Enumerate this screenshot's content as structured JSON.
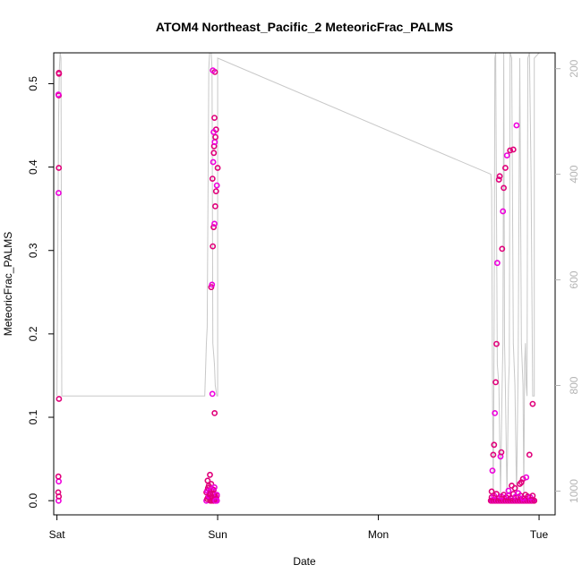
{
  "chart_data": {
    "type": "scatter",
    "title": "ATOM4 Northeast_Pacific_2 MeteoricFrac_PALMS",
    "xlabel": "Date",
    "ylabel": "MeteoricFrac_PALMS",
    "xlim": [
      -0.02,
      3.1
    ],
    "ylim": [
      -0.017,
      0.537
    ],
    "x_ticks": [
      {
        "value": 0,
        "label": "Sat"
      },
      {
        "value": 1,
        "label": "Sun"
      },
      {
        "value": 2,
        "label": "Mon"
      },
      {
        "value": 3,
        "label": "Tue"
      }
    ],
    "y_ticks": [
      0.0,
      0.1,
      0.2,
      0.3,
      0.4,
      0.5
    ],
    "y_tick_labels": [
      "0.0",
      "0.1",
      "0.2",
      "0.3",
      "0.4",
      "0.5"
    ],
    "y2_label": "",
    "y2_lim": [
      1045,
      170
    ],
    "y2_ticks": [
      200,
      400,
      600,
      800,
      1000
    ],
    "y2_tick_labels": [
      "200",
      "400",
      "600",
      "800",
      "1000"
    ],
    "grid": false,
    "colors": {
      "points_dark": "#e0007a",
      "points_light": "#ee00dd",
      "pressure": "#c8c8c8",
      "axis": "#000000",
      "axis2": "#b4b4b4"
    },
    "series": [
      {
        "kind": "points",
        "x": [
          0.01,
          0.012,
          0.008,
          0.011,
          0.009,
          0.013,
          0.01,
          0.012,
          0.011,
          0.009,
          0.013,
          0.012,
          0.93,
          0.935,
          0.94,
          0.945,
          0.95,
          0.955,
          0.96,
          0.965,
          0.97,
          0.975,
          0.98,
          0.985,
          0.99,
          0.995,
          0.93,
          0.935,
          0.94,
          0.945,
          0.95,
          0.955,
          0.96,
          0.965,
          0.97,
          0.975,
          0.98,
          0.985,
          0.99,
          0.995,
          0.938,
          0.952,
          0.967,
          0.981,
          0.96,
          0.965,
          0.97,
          0.975,
          0.98,
          0.985,
          0.99,
          0.995,
          1.0,
          0.968,
          0.972,
          0.976,
          0.978,
          0.982,
          0.986,
          0.99,
          0.975,
          0.98,
          0.983,
          0.97,
          0.972,
          0.975,
          0.98,
          0.985,
          0.99,
          0.995,
          0.963,
          0.978,
          0.987,
          2.7,
          2.705,
          2.71,
          2.715,
          2.72,
          2.725,
          2.73,
          2.735,
          2.74,
          2.745,
          2.75,
          2.755,
          2.76,
          2.765,
          2.77,
          2.775,
          2.78,
          2.785,
          2.79,
          2.795,
          2.8,
          2.805,
          2.81,
          2.815,
          2.82,
          2.825,
          2.83,
          2.835,
          2.84,
          2.845,
          2.85,
          2.855,
          2.86,
          2.865,
          2.87,
          2.875,
          2.88,
          2.885,
          2.89,
          2.895,
          2.9,
          2.905,
          2.91,
          2.915,
          2.92,
          2.925,
          2.93,
          2.935,
          2.94,
          2.945,
          2.95,
          2.955,
          2.96,
          2.965,
          2.97,
          2.705,
          2.72,
          2.735,
          2.75,
          2.765,
          2.78,
          2.795,
          2.81,
          2.825,
          2.84,
          2.855,
          2.87,
          2.885,
          2.9,
          2.915,
          2.93,
          2.945,
          2.96,
          2.705,
          2.71,
          2.715,
          2.72,
          2.725,
          2.73,
          2.735,
          2.74,
          2.75,
          2.755,
          2.76,
          2.765,
          2.77,
          2.775,
          2.78,
          2.79,
          2.8,
          2.82,
          2.84,
          2.86,
          2.88,
          2.9,
          2.92,
          2.94,
          2.96,
          2.81,
          2.83,
          2.85,
          2.87,
          2.89
        ],
        "y": [
          0.0,
          0.005,
          0.01,
          0.023,
          0.029,
          0.122,
          0.369,
          0.399,
          0.486,
          0.487,
          0.512,
          0.513,
          0.0,
          0.002,
          0.004,
          0.006,
          0.008,
          0.0,
          0.003,
          0.005,
          0.001,
          0.007,
          0.002,
          0.004,
          0.0,
          0.006,
          0.01,
          0.012,
          0.015,
          0.018,
          0.011,
          0.008,
          0.02,
          0.014,
          0.009,
          0.013,
          0.016,
          0.005,
          0.003,
          0.007,
          0.024,
          0.031,
          0.128,
          0.105,
          0.256,
          0.259,
          0.305,
          0.328,
          0.332,
          0.353,
          0.371,
          0.378,
          0.399,
          0.386,
          0.406,
          0.417,
          0.425,
          0.43,
          0.436,
          0.445,
          0.442,
          0.459,
          0.514,
          0.516,
          0.0,
          0.0,
          0.001,
          0.0,
          0.002,
          0.0,
          0.0,
          0.001,
          0.0,
          0.0,
          0.0,
          0.0,
          0.0,
          0.0,
          0.0,
          0.0,
          0.0,
          0.0,
          0.0,
          0.0,
          0.0,
          0.0,
          0.0,
          0.0,
          0.0,
          0.0,
          0.0,
          0.0,
          0.0,
          0.0,
          0.0,
          0.0,
          0.0,
          0.0,
          0.0,
          0.0,
          0.0,
          0.0,
          0.0,
          0.0,
          0.0,
          0.0,
          0.0,
          0.0,
          0.0,
          0.0,
          0.0,
          0.0,
          0.0,
          0.0,
          0.0,
          0.0,
          0.0,
          0.0,
          0.0,
          0.0,
          0.0,
          0.0,
          0.0,
          0.0,
          0.0,
          0.0,
          0.0,
          0.0,
          0.004,
          0.006,
          0.008,
          0.003,
          0.005,
          0.007,
          0.004,
          0.006,
          0.003,
          0.008,
          0.005,
          0.004,
          0.006,
          0.003,
          0.007,
          0.005,
          0.004,
          0.006,
          0.011,
          0.036,
          0.055,
          0.067,
          0.105,
          0.142,
          0.188,
          0.285,
          0.385,
          0.389,
          0.053,
          0.058,
          0.302,
          0.347,
          0.375,
          0.399,
          0.414,
          0.42,
          0.421,
          0.45,
          0.02,
          0.026,
          0.028,
          0.055,
          0.116,
          0.012,
          0.018,
          0.015,
          0.009,
          0.022
        ],
        "marker": "open-circle"
      },
      {
        "kind": "line",
        "axis": "y2",
        "name": "",
        "x": [
          0.0,
          0.01,
          0.015,
          0.02,
          0.025,
          0.03,
          0.6,
          0.9,
          0.92,
          0.93,
          0.935,
          0.945,
          0.95,
          0.955,
          0.96,
          0.965,
          0.97,
          0.975,
          0.98,
          0.985,
          0.99,
          0.995,
          1.0,
          1.0,
          2.7,
          2.705,
          2.71,
          2.715,
          2.72,
          2.725,
          2.73,
          2.74,
          2.75,
          2.76,
          2.77,
          2.775,
          2.78,
          2.785,
          2.79,
          2.8,
          2.81,
          2.815,
          2.82,
          2.83,
          2.84,
          2.85,
          2.86,
          2.87,
          2.88,
          2.89,
          2.9,
          2.905,
          2.91,
          2.915,
          2.92,
          2.925,
          2.93,
          2.94,
          2.95,
          2.96,
          2.97,
          2.97,
          3.0,
          3.02
        ],
        "y": [
          820,
          300,
          200,
          150,
          180,
          820,
          820,
          820,
          820,
          720,
          690,
          200,
          160,
          150,
          160,
          200,
          720,
          740,
          760,
          800,
          810,
          820,
          820,
          180,
          400,
          430,
          800,
          1010,
          720,
          180,
          160,
          760,
          800,
          1010,
          800,
          720,
          160,
          720,
          800,
          1010,
          800,
          760,
          160,
          180,
          720,
          800,
          1010,
          760,
          180,
          720,
          800,
          1010,
          760,
          720,
          800,
          820,
          180,
          160,
          400,
          820,
          820,
          180,
          170,
          160
        ]
      }
    ]
  }
}
